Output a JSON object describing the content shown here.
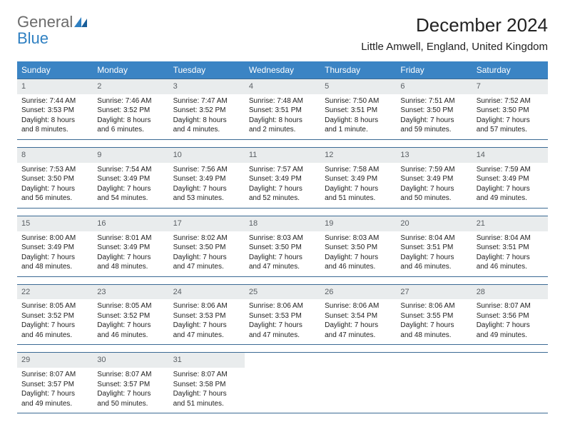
{
  "logo": {
    "general": "General",
    "blue": "Blue"
  },
  "title": "December 2024",
  "subtitle": "Little Amwell, England, United Kingdom",
  "colors": {
    "header_bg": "#3b84c4",
    "header_text": "#ffffff",
    "daynum_bg": "#e9eced",
    "daynum_text": "#5a5f64",
    "row_border": "#3b6a94",
    "body_text": "#222222",
    "logo_gray": "#6b6b6b",
    "logo_blue": "#2f80c2"
  },
  "dow": [
    "Sunday",
    "Monday",
    "Tuesday",
    "Wednesday",
    "Thursday",
    "Friday",
    "Saturday"
  ],
  "weeks": [
    [
      {
        "num": "1",
        "sunrise": "Sunrise: 7:44 AM",
        "sunset": "Sunset: 3:53 PM",
        "daylight": "Daylight: 8 hours and 8 minutes."
      },
      {
        "num": "2",
        "sunrise": "Sunrise: 7:46 AM",
        "sunset": "Sunset: 3:52 PM",
        "daylight": "Daylight: 8 hours and 6 minutes."
      },
      {
        "num": "3",
        "sunrise": "Sunrise: 7:47 AM",
        "sunset": "Sunset: 3:52 PM",
        "daylight": "Daylight: 8 hours and 4 minutes."
      },
      {
        "num": "4",
        "sunrise": "Sunrise: 7:48 AM",
        "sunset": "Sunset: 3:51 PM",
        "daylight": "Daylight: 8 hours and 2 minutes."
      },
      {
        "num": "5",
        "sunrise": "Sunrise: 7:50 AM",
        "sunset": "Sunset: 3:51 PM",
        "daylight": "Daylight: 8 hours and 1 minute."
      },
      {
        "num": "6",
        "sunrise": "Sunrise: 7:51 AM",
        "sunset": "Sunset: 3:50 PM",
        "daylight": "Daylight: 7 hours and 59 minutes."
      },
      {
        "num": "7",
        "sunrise": "Sunrise: 7:52 AM",
        "sunset": "Sunset: 3:50 PM",
        "daylight": "Daylight: 7 hours and 57 minutes."
      }
    ],
    [
      {
        "num": "8",
        "sunrise": "Sunrise: 7:53 AM",
        "sunset": "Sunset: 3:50 PM",
        "daylight": "Daylight: 7 hours and 56 minutes."
      },
      {
        "num": "9",
        "sunrise": "Sunrise: 7:54 AM",
        "sunset": "Sunset: 3:49 PM",
        "daylight": "Daylight: 7 hours and 54 minutes."
      },
      {
        "num": "10",
        "sunrise": "Sunrise: 7:56 AM",
        "sunset": "Sunset: 3:49 PM",
        "daylight": "Daylight: 7 hours and 53 minutes."
      },
      {
        "num": "11",
        "sunrise": "Sunrise: 7:57 AM",
        "sunset": "Sunset: 3:49 PM",
        "daylight": "Daylight: 7 hours and 52 minutes."
      },
      {
        "num": "12",
        "sunrise": "Sunrise: 7:58 AM",
        "sunset": "Sunset: 3:49 PM",
        "daylight": "Daylight: 7 hours and 51 minutes."
      },
      {
        "num": "13",
        "sunrise": "Sunrise: 7:59 AM",
        "sunset": "Sunset: 3:49 PM",
        "daylight": "Daylight: 7 hours and 50 minutes."
      },
      {
        "num": "14",
        "sunrise": "Sunrise: 7:59 AM",
        "sunset": "Sunset: 3:49 PM",
        "daylight": "Daylight: 7 hours and 49 minutes."
      }
    ],
    [
      {
        "num": "15",
        "sunrise": "Sunrise: 8:00 AM",
        "sunset": "Sunset: 3:49 PM",
        "daylight": "Daylight: 7 hours and 48 minutes."
      },
      {
        "num": "16",
        "sunrise": "Sunrise: 8:01 AM",
        "sunset": "Sunset: 3:49 PM",
        "daylight": "Daylight: 7 hours and 48 minutes."
      },
      {
        "num": "17",
        "sunrise": "Sunrise: 8:02 AM",
        "sunset": "Sunset: 3:50 PM",
        "daylight": "Daylight: 7 hours and 47 minutes."
      },
      {
        "num": "18",
        "sunrise": "Sunrise: 8:03 AM",
        "sunset": "Sunset: 3:50 PM",
        "daylight": "Daylight: 7 hours and 47 minutes."
      },
      {
        "num": "19",
        "sunrise": "Sunrise: 8:03 AM",
        "sunset": "Sunset: 3:50 PM",
        "daylight": "Daylight: 7 hours and 46 minutes."
      },
      {
        "num": "20",
        "sunrise": "Sunrise: 8:04 AM",
        "sunset": "Sunset: 3:51 PM",
        "daylight": "Daylight: 7 hours and 46 minutes."
      },
      {
        "num": "21",
        "sunrise": "Sunrise: 8:04 AM",
        "sunset": "Sunset: 3:51 PM",
        "daylight": "Daylight: 7 hours and 46 minutes."
      }
    ],
    [
      {
        "num": "22",
        "sunrise": "Sunrise: 8:05 AM",
        "sunset": "Sunset: 3:52 PM",
        "daylight": "Daylight: 7 hours and 46 minutes."
      },
      {
        "num": "23",
        "sunrise": "Sunrise: 8:05 AM",
        "sunset": "Sunset: 3:52 PM",
        "daylight": "Daylight: 7 hours and 46 minutes."
      },
      {
        "num": "24",
        "sunrise": "Sunrise: 8:06 AM",
        "sunset": "Sunset: 3:53 PM",
        "daylight": "Daylight: 7 hours and 47 minutes."
      },
      {
        "num": "25",
        "sunrise": "Sunrise: 8:06 AM",
        "sunset": "Sunset: 3:53 PM",
        "daylight": "Daylight: 7 hours and 47 minutes."
      },
      {
        "num": "26",
        "sunrise": "Sunrise: 8:06 AM",
        "sunset": "Sunset: 3:54 PM",
        "daylight": "Daylight: 7 hours and 47 minutes."
      },
      {
        "num": "27",
        "sunrise": "Sunrise: 8:06 AM",
        "sunset": "Sunset: 3:55 PM",
        "daylight": "Daylight: 7 hours and 48 minutes."
      },
      {
        "num": "28",
        "sunrise": "Sunrise: 8:07 AM",
        "sunset": "Sunset: 3:56 PM",
        "daylight": "Daylight: 7 hours and 49 minutes."
      }
    ],
    [
      {
        "num": "29",
        "sunrise": "Sunrise: 8:07 AM",
        "sunset": "Sunset: 3:57 PM",
        "daylight": "Daylight: 7 hours and 49 minutes."
      },
      {
        "num": "30",
        "sunrise": "Sunrise: 8:07 AM",
        "sunset": "Sunset: 3:57 PM",
        "daylight": "Daylight: 7 hours and 50 minutes."
      },
      {
        "num": "31",
        "sunrise": "Sunrise: 8:07 AM",
        "sunset": "Sunset: 3:58 PM",
        "daylight": "Daylight: 7 hours and 51 minutes."
      },
      null,
      null,
      null,
      null
    ]
  ]
}
